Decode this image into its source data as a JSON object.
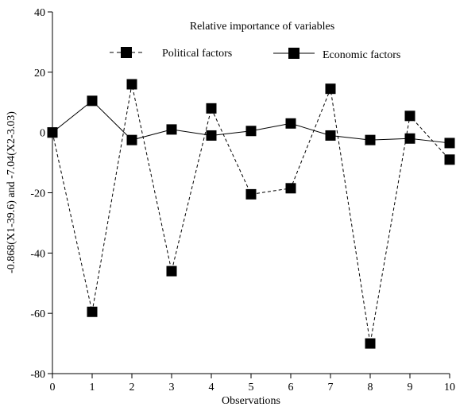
{
  "chart_data": {
    "type": "line",
    "title": "Relative importance of variables",
    "xlabel": "Observations",
    "ylabel": "-0.868(X1-39.6) and -7.04(X2-3.03)",
    "xlim": [
      0,
      10
    ],
    "ylim": [
      -80,
      40
    ],
    "x_ticks": [
      "0",
      "1",
      "2",
      "3",
      "4",
      "5",
      "6",
      "7",
      "8",
      "9",
      "10"
    ],
    "y_ticks": [
      "40",
      "20",
      "0",
      "-20",
      "-40",
      "-60",
      "-80"
    ],
    "grid": false,
    "legend_position": "top-center",
    "x": [
      0,
      1,
      2,
      3,
      4,
      5,
      6,
      7,
      8,
      9,
      10
    ],
    "series": [
      {
        "name": "Political factors",
        "style": "dashed",
        "values": [
          0,
          -59.5,
          16,
          -46,
          8,
          -20.5,
          -18.5,
          14.5,
          -70,
          5.5,
          -9
        ]
      },
      {
        "name": "Economic factors",
        "style": "solid",
        "values": [
          0,
          10.5,
          -2.5,
          1,
          -1,
          0.5,
          3,
          -1,
          -2.5,
          -2,
          -3.5
        ]
      }
    ],
    "colors": {
      "line": "#000000",
      "marker": "#000000"
    }
  }
}
